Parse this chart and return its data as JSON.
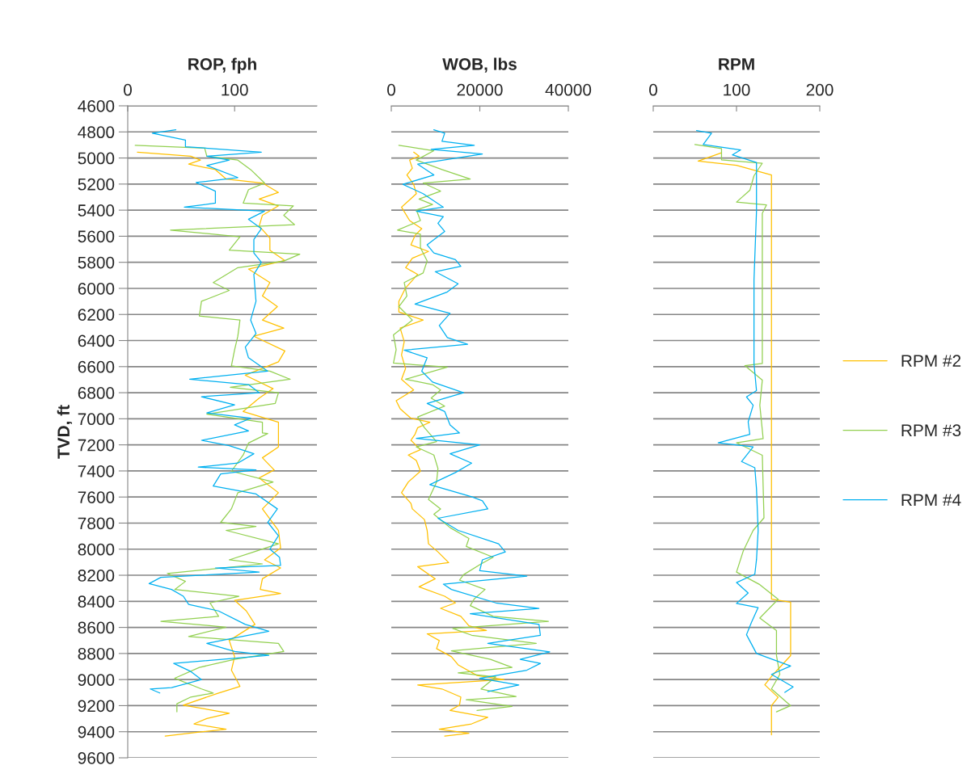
{
  "chart_data": [
    {
      "type": "line",
      "title": "ROP, fph",
      "ylabel": "TVD, ft",
      "xlim": [
        0,
        177
      ],
      "xticks": [
        0,
        100
      ],
      "ylim": [
        9600,
        4600
      ],
      "yticks": [
        4600,
        4800,
        5000,
        5200,
        5400,
        5600,
        5800,
        6000,
        6200,
        6400,
        6600,
        6800,
        7000,
        7200,
        7400,
        7600,
        7800,
        8000,
        8200,
        8400,
        8600,
        8800,
        9000,
        9200,
        9400,
        9600
      ],
      "grid": "y",
      "legend": false,
      "series": [
        {
          "color": "#ffc000",
          "x": [
            9,
            59,
            68,
            57,
            82,
            92,
            126,
            141,
            123,
            141,
            126,
            123,
            133,
            133,
            147,
            113,
            133,
            126,
            140,
            126,
            146,
            118,
            147,
            141,
            110,
            136,
            123,
            108,
            141,
            141,
            141,
            126,
            137,
            123,
            141,
            126,
            141,
            143,
            128,
            143,
            126,
            124,
            143,
            100,
            111,
            119,
            95,
            100,
            97,
            105,
            85,
            52,
            95,
            74,
            62,
            92,
            67,
            35
          ],
          "values": [
            4955,
            4986,
            5016,
            5047,
            5089,
            5161,
            5192,
            5264,
            5315,
            5367,
            5439,
            5522,
            5614,
            5707,
            5786,
            5852,
            5955,
            6058,
            6140,
            6243,
            6305,
            6367,
            6480,
            6563,
            6666,
            6769,
            6841,
            6944,
            7027,
            7109,
            7216,
            7299,
            7392,
            7454,
            7567,
            7691,
            7856,
            7990,
            8082,
            8144,
            8227,
            8309,
            8340,
            8392,
            8474,
            8577,
            8701,
            8825,
            8928,
            9052,
            9103,
            9196,
            9258,
            9299,
            9340,
            9381,
            9402,
            9433
          ]
        },
        {
          "color": "#92d050",
          "x": [
            7,
            72,
            74,
            103,
            115,
            128,
            113,
            108,
            155,
            146,
            156,
            40,
            105,
            95,
            161,
            146,
            103,
            80,
            95,
            69,
            67,
            105,
            103,
            100,
            97,
            133,
            152,
            96,
            141,
            138,
            74,
            126,
            126,
            131,
            113,
            108,
            97,
            136,
            103,
            97,
            87,
            120,
            92,
            141,
            118,
            95,
            126,
            37,
            54,
            44,
            104,
            77,
            85,
            31,
            92,
            57,
            141,
            146,
            100,
            67,
            44,
            69,
            80,
            59,
            46,
            46
          ],
          "values": [
            4903,
            4924,
            4986,
            5016,
            5089,
            5192,
            5243,
            5346,
            5367,
            5439,
            5511,
            5553,
            5604,
            5707,
            5738,
            5790,
            5841,
            5955,
            6016,
            6099,
            6212,
            6243,
            6367,
            6470,
            6594,
            6635,
            6697,
            6759,
            6800,
            6882,
            6965,
            7027,
            7109,
            7113,
            7186,
            7278,
            7402,
            7485,
            7567,
            7691,
            7794,
            7825,
            7856,
            7959,
            8021,
            8082,
            8113,
            8186,
            8247,
            8309,
            8361,
            8412,
            8515,
            8553,
            8598,
            8670,
            8722,
            8784,
            8845,
            8907,
            8990,
            9072,
            9103,
            9134,
            9186,
            9247
          ]
        },
        {
          "color": "#00b0f0",
          "x": [
            45,
            23,
            54,
            54,
            125,
            74,
            95,
            74,
            103,
            64,
            82,
            82,
            53,
            128,
            113,
            125,
            118,
            118,
            125,
            118,
            120,
            115,
            120,
            110,
            113,
            131,
            58,
            113,
            123,
            69,
            100,
            74,
            115,
            100,
            113,
            69,
            95,
            118,
            103,
            66,
            120,
            87,
            80,
            120,
            140,
            131,
            141,
            133,
            142,
            143,
            82,
            123,
            31,
            20,
            41,
            52,
            57,
            85,
            110,
            132,
            100,
            74,
            100,
            132,
            43,
            59,
            69,
            41,
            21,
            30
          ],
          "values": [
            4784,
            4810,
            4862,
            4913,
            4955,
            4986,
            5016,
            5058,
            5150,
            5188,
            5254,
            5346,
            5377,
            5408,
            5470,
            5542,
            5625,
            5728,
            5800,
            5893,
            6099,
            6243,
            6346,
            6450,
            6532,
            6635,
            6697,
            6738,
            6800,
            6831,
            6893,
            6955,
            6996,
            7047,
            7093,
            7165,
            7206,
            7268,
            7340,
            7371,
            7392,
            7423,
            7516,
            7577,
            7691,
            7794,
            7897,
            8000,
            8062,
            8124,
            8144,
            8175,
            8216,
            8264,
            8309,
            8361,
            8423,
            8474,
            8577,
            8629,
            8680,
            8722,
            8784,
            8814,
            8876,
            8938,
            9000,
            9062,
            9072,
            9103
          ]
        }
      ]
    },
    {
      "type": "line",
      "title": "WOB, lbs",
      "xlim": [
        0,
        40000
      ],
      "xticks": [
        0,
        20000,
        40000
      ],
      "ylim": [
        9600,
        4600
      ],
      "yticks": [
        4600,
        4800,
        5000,
        5200,
        5400,
        5600,
        5800,
        6000,
        6200,
        6400,
        6600,
        6800,
        7000,
        7200,
        7400,
        7600,
        7800,
        8000,
        8200,
        8400,
        8600,
        8800,
        9000,
        9200,
        9400,
        9600
      ],
      "grid": "y",
      "legend": false,
      "tick_labels": "x",
      "series": [
        {
          "color": "#ffc000",
          "x": [
            5050,
            6270,
            4140,
            4750,
            3530,
            5050,
            5660,
            2310,
            4140,
            6880,
            5360,
            4440,
            8400,
            4750,
            3230,
            5970,
            3230,
            1710,
            1710,
            7190,
            2010,
            2920,
            2310,
            3230,
            2310,
            5050,
            1100,
            2010,
            4440,
            8710,
            5970,
            5360,
            4440,
            6580,
            3840,
            5660,
            6580,
            3840,
            2310,
            4440,
            4750,
            7490,
            8100,
            8400,
            10540,
            12970,
            5970,
            9930,
            6270,
            12060,
            14490,
            11140,
            15710,
            17540,
            21500,
            8100,
            10840,
            10230,
            13580,
            15100,
            19370,
            25460,
            5970,
            11450,
            15710,
            15410,
            13280,
            21800,
            18150,
            10840,
            17540,
            12060
          ],
          "values": [
            4955,
            4986,
            5016,
            5078,
            5130,
            5202,
            5274,
            5377,
            5480,
            5542,
            5594,
            5666,
            5717,
            5769,
            5841,
            5893,
            5996,
            6099,
            6181,
            6243,
            6305,
            6408,
            6511,
            6614,
            6697,
            6779,
            6862,
            6924,
            6996,
            7027,
            7068,
            7119,
            7165,
            7237,
            7278,
            7320,
            7402,
            7485,
            7567,
            7649,
            7691,
            7773,
            7856,
            7959,
            8021,
            8103,
            8134,
            8227,
            8289,
            8361,
            8412,
            8454,
            8515,
            8588,
            8623,
            8649,
            8701,
            8763,
            8825,
            8887,
            8969,
            9000,
            9041,
            9072,
            9134,
            9196,
            9237,
            9289,
            9340,
            9381,
            9412,
            9433
          ]
        },
        {
          "color": "#92d050",
          "x": [
            1710,
            9620,
            5660,
            11450,
            17840,
            7190,
            11140,
            6270,
            9320,
            5660,
            6580,
            1400,
            6580,
            6580,
            8100,
            7190,
            2920,
            3530,
            1710,
            4750,
            490,
            1100,
            490,
            12670,
            3230,
            9320,
            11140,
            9010,
            12060,
            5970,
            7490,
            10230,
            5660,
            9620,
            10540,
            10230,
            8400,
            11140,
            9620,
            13280,
            17540,
            16930,
            23020,
            20280,
            16320,
            15410,
            21190,
            18750,
            17840,
            23020,
            35500,
            13890,
            18150,
            32760,
            13580,
            22410,
            27280,
            15100,
            23630,
            20280,
            28200,
            16930,
            27280,
            19370
          ],
          "values": [
            4903,
            4944,
            5016,
            5089,
            5161,
            5192,
            5254,
            5315,
            5357,
            5398,
            5480,
            5553,
            5584,
            5687,
            5790,
            5882,
            5955,
            6058,
            6140,
            6243,
            6357,
            6470,
            6573,
            6604,
            6697,
            6738,
            6779,
            6841,
            6903,
            6986,
            7068,
            7175,
            7216,
            7278,
            7381,
            7485,
            7619,
            7691,
            7732,
            7835,
            7918,
            7979,
            8062,
            8113,
            8196,
            8237,
            8309,
            8381,
            8433,
            8515,
            8553,
            8608,
            8660,
            8722,
            8780,
            8845,
            8907,
            8948,
            8979,
            9072,
            9130,
            9155,
            9206,
            9237
          ]
        },
        {
          "color": "#00b0f0",
          "x": [
            9600,
            12060,
            11450,
            18750,
            9010,
            20580,
            5970,
            9620,
            2620,
            7190,
            11750,
            5660,
            11750,
            10540,
            12060,
            8100,
            9620,
            14490,
            15710,
            9930,
            15100,
            12670,
            5360,
            13280,
            10840,
            12670,
            17230,
            2920,
            8100,
            6880,
            9320,
            16320,
            8100,
            12060,
            13280,
            15410,
            5660,
            19970,
            13280,
            18150,
            14490,
            8710,
            18150,
            20580,
            21800,
            10540,
            15100,
            24240,
            25760,
            20580,
            19970,
            30630,
            11750,
            13580,
            23630,
            33370,
            17840,
            33370,
            33680,
            21800,
            35800,
            29110,
            33680,
            30630,
            19970,
            28810,
            21800
          ],
          "values": [
            4784,
            4810,
            4872,
            4903,
            4934,
            4969,
            5047,
            5130,
            5202,
            5274,
            5377,
            5408,
            5450,
            5501,
            5563,
            5666,
            5728,
            5779,
            5831,
            5872,
            5965,
            6027,
            6120,
            6192,
            6284,
            6377,
            6429,
            6474,
            6532,
            6635,
            6718,
            6800,
            6882,
            6944,
            7047,
            7109,
            7150,
            7200,
            7268,
            7340,
            7412,
            7505,
            7598,
            7629,
            7691,
            7763,
            7856,
            7959,
            8021,
            8082,
            8165,
            8206,
            8268,
            8309,
            8412,
            8454,
            8495,
            8577,
            8660,
            8722,
            8788,
            8845,
            8876,
            8928,
            8990,
            9041,
            9093
          ]
        }
      ]
    },
    {
      "type": "line",
      "title": "RPM",
      "xlim": [
        0,
        200
      ],
      "xticks": [
        0,
        100,
        200
      ],
      "ylim": [
        9600,
        4600
      ],
      "yticks": [
        4600,
        4800,
        5000,
        5200,
        5400,
        5600,
        5800,
        6000,
        6200,
        6400,
        6600,
        6800,
        7000,
        7200,
        7400,
        7600,
        7800,
        8000,
        8200,
        8400,
        8600,
        8800,
        9000,
        9200,
        9400,
        9600
      ],
      "grid": "y",
      "legend": "right",
      "tick_labels": "x",
      "series": [
        {
          "name": "RPM #2",
          "color": "#ffc000",
          "x": [
            82,
            54,
            100,
            142,
            142,
            142,
            165,
            165,
            142,
            134,
            150,
            142,
            142
          ],
          "values": [
            4960,
            5024,
            5056,
            5130,
            7536,
            8384,
            8406,
            8816,
            8976,
            9040,
            9136,
            9200,
            9424
          ]
        },
        {
          "name": "RPM #3",
          "color": "#92d050",
          "x": [
            50,
            82,
            82,
            131,
            121,
            116,
            100,
            136,
            131,
            131,
            131,
            110,
            131,
            128,
            132,
            100,
            131,
            133,
            120,
            108,
            100,
            128,
            150,
            128,
            148,
            148,
            152,
            142,
            165,
            148
          ],
          "values": [
            4896,
            4928,
            5014,
            5040,
            5136,
            5248,
            5338,
            5360,
            5424,
            5936,
            6576,
            6592,
            6704,
            6896,
            7152,
            7184,
            7280,
            7760,
            7856,
            8016,
            8176,
            8272,
            8384,
            8528,
            8624,
            8816,
            8960,
            9072,
            9200,
            9248
          ]
        },
        {
          "name": "RPM #4",
          "color": "#00b0f0",
          "x": [
            52,
            70,
            60,
            105,
            95,
            124,
            124,
            124,
            121,
            121,
            124,
            112,
            120,
            114,
            116,
            78,
            120,
            106,
            122,
            124,
            126,
            124,
            122,
            100,
            114,
            100,
            126,
            118,
            112,
            124,
            165,
            142,
            168,
            158
          ],
          "values": [
            4790,
            4810,
            4896,
            4938,
            4976,
            5034,
            5136,
            5408,
            5936,
            6576,
            6784,
            6832,
            6896,
            7024,
            7120,
            7184,
            7216,
            7328,
            7376,
            7536,
            7856,
            8080,
            8192,
            8256,
            8336,
            8416,
            8448,
            8560,
            8656,
            8800,
            8896,
            8960,
            9056,
            9098
          ]
        }
      ]
    }
  ]
}
